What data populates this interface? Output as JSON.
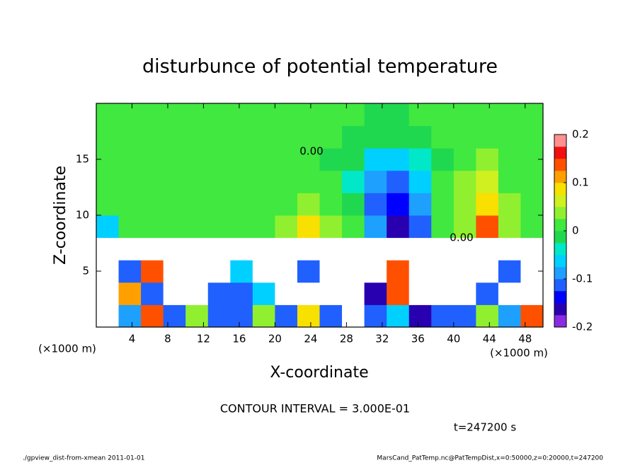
{
  "chart_data": {
    "type": "contour",
    "title": "disturbunce of potential temperature",
    "xlabel": "X-coordinate",
    "ylabel": "Z-coordinate",
    "x_unit_left": "(×1000 m)",
    "x_unit_right": "(×1000 m)",
    "xlim": [
      0,
      50
    ],
    "xticks": [
      4,
      8,
      12,
      16,
      20,
      24,
      28,
      32,
      36,
      40,
      44,
      48
    ],
    "ylim": [
      0,
      20
    ],
    "yticks": [
      5,
      10,
      15
    ],
    "color_levels": [
      -0.2,
      -0.175,
      -0.15,
      -0.125,
      -0.1,
      -0.075,
      -0.05,
      -0.025,
      0,
      0.025,
      0.05,
      0.075,
      0.1,
      0.125,
      0.15,
      0.175,
      0.2
    ],
    "colors": [
      "#8a2be2",
      "#2800b0",
      "#0000ff",
      "#2060ff",
      "#1ea0ff",
      "#00d0ff",
      "#00e8c8",
      "#20d850",
      "#40e840",
      "#90f030",
      "#d0f020",
      "#f8e000",
      "#ffa000",
      "#ff5000",
      "#f01010",
      "#ff9090"
    ],
    "colorbar_ticks": [
      -0.2,
      -0.1,
      0,
      0.1,
      0.2
    ],
    "z": [
      [
        0.3,
        -0.08,
        0.15,
        -0.12,
        0.05,
        -0.1,
        -0.12,
        0.05,
        -0.1,
        0.1,
        -0.12,
        0.3,
        -0.1,
        -0.05,
        -0.15,
        -0.1,
        -0.12,
        0.05,
        -0.08,
        0.15
      ],
      [
        0.3,
        0.12,
        -0.1,
        0.3,
        0.3,
        -0.12,
        -0.1,
        -0.05,
        0.3,
        0.3,
        0.3,
        0.3,
        -0.15,
        0.15,
        0.3,
        0.3,
        0.3,
        -0.1,
        0.3,
        0.3
      ],
      [
        0.3,
        -0.1,
        0.15,
        0.3,
        0.3,
        0.3,
        -0.05,
        0.3,
        0.3,
        -0.1,
        0.3,
        0.3,
        0.3,
        0.15,
        0.3,
        0.3,
        0.3,
        0.3,
        -0.1,
        0.3
      ],
      [
        0.3,
        0.3,
        0.3,
        0.3,
        0.3,
        0.3,
        0.3,
        0.3,
        0.3,
        0.3,
        0.3,
        0.3,
        0.3,
        0.3,
        0.3,
        0.3,
        0.3,
        0.3,
        0.3,
        0.3
      ],
      [
        -0.05,
        0.01,
        0.01,
        0.01,
        0.01,
        0.01,
        0.01,
        0.01,
        0.03,
        0.08,
        0.04,
        0.01,
        -0.08,
        -0.17,
        -0.12,
        0.01,
        0.05,
        0.13,
        0.04,
        0.01
      ],
      [
        0.01,
        0.01,
        0.01,
        0.01,
        0.01,
        0.01,
        0.01,
        0.01,
        0.02,
        0.03,
        0.01,
        -0.02,
        -0.1,
        -0.13,
        -0.08,
        0.01,
        0.04,
        0.1,
        0.03,
        0.01
      ],
      [
        0.01,
        0.01,
        0.01,
        0.01,
        0.01,
        0.01,
        0.01,
        0.01,
        0.01,
        0.01,
        0.01,
        -0.03,
        -0.08,
        -0.1,
        -0.06,
        0.01,
        0.03,
        0.07,
        0.02,
        0.01
      ],
      [
        0.01,
        0.01,
        0.01,
        0.01,
        0.01,
        0.01,
        0.01,
        0.01,
        0.01,
        0.01,
        0.0,
        -0.02,
        -0.05,
        -0.06,
        -0.04,
        0.0,
        0.01,
        0.03,
        0.01,
        0.01
      ],
      [
        0.01,
        0.01,
        0.01,
        0.01,
        0.01,
        0.01,
        0.01,
        0.01,
        0.01,
        0.01,
        0.01,
        0.0,
        -0.02,
        -0.02,
        -0.01,
        0.01,
        0.01,
        0.01,
        0.01,
        0.01
      ],
      [
        0.01,
        0.01,
        0.01,
        0.01,
        0.01,
        0.01,
        0.01,
        0.01,
        0.01,
        0.01,
        0.01,
        0.01,
        0.0,
        0.0,
        0.01,
        0.01,
        0.01,
        0.01,
        0.01,
        0.01
      ]
    ],
    "contour_labels": [
      "0.00",
      "0.00"
    ],
    "contour_interval": "CONTOUR INTERVAL = 3.000E-01",
    "time": "t=247200 s",
    "footer_left": "./gpview_dist-from-xmean  2011-01-01",
    "footer_right": "MarsCand_PatTemp.nc@PatTempDist,x=0:50000,z=0:20000,t=247200"
  }
}
